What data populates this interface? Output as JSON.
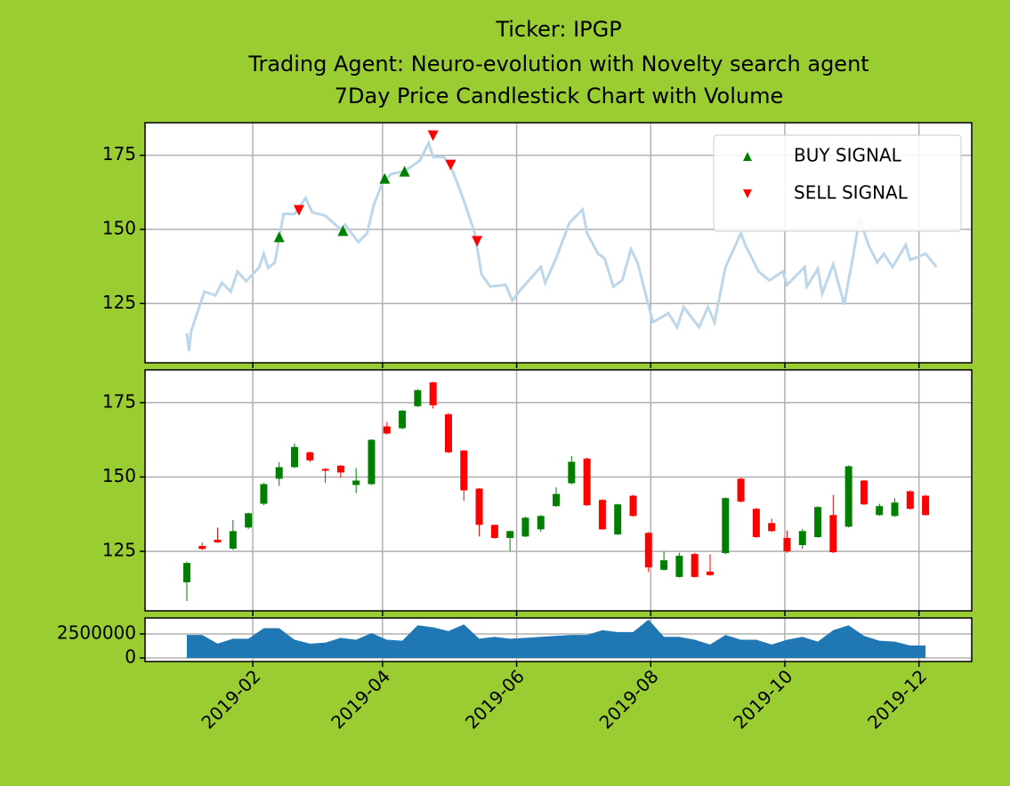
{
  "chart_data": [
    {
      "type": "line",
      "title": [
        "Ticker: IPGP",
        "Trading Agent: Neuro-evolution with Novelty search agent",
        "7Day Price Candlestick Chart with Volume"
      ],
      "ylim": [
        105,
        186
      ],
      "yticks": [
        125,
        150,
        175
      ],
      "grid": true,
      "legend": "upper right",
      "series": [
        {
          "color": "#bcd6ea",
          "marker": "none",
          "x": [
            "2019-01-02",
            "2019-01-03",
            "2019-01-04",
            "2019-01-10",
            "2019-01-15",
            "2019-01-18",
            "2019-01-22",
            "2019-01-25",
            "2019-01-29",
            "2019-02-04",
            "2019-02-06",
            "2019-02-08",
            "2019-02-11",
            "2019-02-13",
            "2019-02-15",
            "2019-02-20",
            "2019-02-25",
            "2019-02-28",
            "2019-03-06",
            "2019-03-13",
            "2019-03-15",
            "2019-03-21",
            "2019-03-25",
            "2019-03-28",
            "2019-04-01",
            "2019-04-05",
            "2019-04-11",
            "2019-04-18",
            "2019-04-22",
            "2019-04-24",
            "2019-04-29",
            "2019-05-03",
            "2019-05-08",
            "2019-05-13",
            "2019-05-16",
            "2019-05-20",
            "2019-05-27",
            "2019-05-30",
            "2019-06-03",
            "2019-06-12",
            "2019-06-14",
            "2019-06-19",
            "2019-06-25",
            "2019-07-01",
            "2019-07-03",
            "2019-07-08",
            "2019-07-11",
            "2019-07-15",
            "2019-07-19",
            "2019-07-23",
            "2019-07-26",
            "2019-08-02",
            "2019-08-09",
            "2019-08-13",
            "2019-08-16",
            "2019-08-23",
            "2019-08-27",
            "2019-08-30",
            "2019-09-04",
            "2019-09-11",
            "2019-09-13",
            "2019-09-19",
            "2019-09-24",
            "2019-09-30",
            "2019-10-02",
            "2019-10-10",
            "2019-10-11",
            "2019-10-16",
            "2019-10-18",
            "2019-10-23",
            "2019-10-28",
            "2019-11-01",
            "2019-11-04",
            "2019-11-08",
            "2019-11-12",
            "2019-11-15",
            "2019-11-19",
            "2019-11-25",
            "2019-11-27",
            "2019-12-04",
            "2019-12-09"
          ],
          "values": [
            115,
            109,
            115.7,
            129,
            127.7,
            132,
            129,
            135.8,
            132.5,
            137.3,
            141.8,
            137,
            138.8,
            146.9,
            155.2,
            155.2,
            160.6,
            155.8,
            154.6,
            150,
            151.6,
            145.7,
            148.7,
            158.2,
            165.7,
            168.7,
            169.6,
            173.2,
            179.2,
            174.4,
            174.4,
            169.6,
            159.7,
            148.7,
            134.9,
            130.7,
            131.3,
            126,
            129.8,
            137.3,
            132,
            140.3,
            152.2,
            156.7,
            148.7,
            141.8,
            140.3,
            130.7,
            132.8,
            143.3,
            138.8,
            118.7,
            121.7,
            117,
            123.8,
            117,
            123.8,
            118.7,
            137.3,
            148.7,
            144.8,
            135.8,
            132.8,
            135.8,
            131.3,
            137.3,
            130.7,
            136.7,
            128.3,
            138.2,
            124.7,
            140.9,
            153.7,
            144.8,
            138.8,
            141.8,
            137.3,
            144.8,
            139.7,
            141.8,
            137.3
          ]
        },
        {
          "name": "BUY SIGNAL",
          "color": "green",
          "marker": "^",
          "x": [
            "2019-02-13",
            "2019-03-14",
            "2019-04-02",
            "2019-04-11"
          ],
          "values": [
            147.5,
            149.6,
            167.2,
            169.6
          ]
        },
        {
          "name": "SELL SIGNAL",
          "color": "red",
          "marker": "v",
          "x": [
            "2019-02-22",
            "2019-04-24",
            "2019-05-02",
            "2019-05-14"
          ],
          "values": [
            156.4,
            181.6,
            171.7,
            146
          ]
        }
      ]
    },
    {
      "type": "candlestick",
      "ylim": [
        105,
        186
      ],
      "yticks": [
        125,
        150,
        175
      ],
      "grid": true,
      "up_color": "green",
      "down_color": "red",
      "x": [
        "2019-01-02",
        "2019-01-09",
        "2019-01-16",
        "2019-01-23",
        "2019-01-30",
        "2019-02-06",
        "2019-02-13",
        "2019-02-20",
        "2019-02-27",
        "2019-03-06",
        "2019-03-13",
        "2019-03-20",
        "2019-03-27",
        "2019-04-03",
        "2019-04-10",
        "2019-04-17",
        "2019-04-24",
        "2019-05-01",
        "2019-05-08",
        "2019-05-15",
        "2019-05-22",
        "2019-05-29",
        "2019-06-05",
        "2019-06-12",
        "2019-06-19",
        "2019-06-26",
        "2019-07-03",
        "2019-07-10",
        "2019-07-17",
        "2019-07-24",
        "2019-07-31",
        "2019-08-07",
        "2019-08-14",
        "2019-08-21",
        "2019-08-28",
        "2019-09-04",
        "2019-09-11",
        "2019-09-18",
        "2019-09-25",
        "2019-10-02",
        "2019-10-09",
        "2019-10-16",
        "2019-10-23",
        "2019-10-30",
        "2019-11-06",
        "2019-11-13",
        "2019-11-20",
        "2019-11-27",
        "2019-12-04"
      ],
      "open": [
        114.6,
        126.8,
        128.9,
        125.9,
        133,
        141,
        149.4,
        153.3,
        158.3,
        152.7,
        153.8,
        147.3,
        147.6,
        167,
        166.4,
        173.8,
        181.8,
        171.1,
        158.9,
        146.1,
        133.9,
        129.5,
        130,
        132.4,
        140.2,
        147.9,
        156.2,
        142.3,
        130.7,
        143.7,
        131.2,
        118.8,
        116.4,
        124.1,
        118.2,
        124.4,
        149.4,
        139.3,
        134.5,
        129.5,
        127.1,
        129.8,
        137.2,
        133.3,
        148.8,
        137.2,
        136.9,
        145.2,
        143.7
      ],
      "high": [
        121.5,
        128,
        133,
        135.5,
        138,
        148,
        155,
        161.3,
        158.5,
        153,
        154,
        153,
        162.7,
        168.5,
        172.5,
        179.5,
        182,
        171.5,
        159,
        146.3,
        134,
        132,
        136.7,
        137.2,
        146.5,
        157,
        156.5,
        142.5,
        141,
        144,
        131.5,
        125,
        124.5,
        124.5,
        124,
        143.2,
        149.7,
        139.6,
        136,
        132,
        132.5,
        140.2,
        144,
        153.9,
        149,
        141,
        142.8,
        145.5,
        144
      ],
      "low": [
        108.3,
        125.5,
        127.8,
        125.5,
        132.5,
        140.5,
        147,
        153,
        155,
        148,
        149.7,
        144.6,
        147.3,
        164.3,
        166,
        173.5,
        173,
        158,
        142,
        130,
        129.2,
        125,
        129.8,
        131.5,
        140,
        147.5,
        140.2,
        132.2,
        130.5,
        136.6,
        118,
        118.5,
        116.2,
        116.2,
        116.8,
        124,
        141.5,
        129.5,
        131.5,
        124.5,
        125.8,
        129.5,
        124.4,
        133,
        140.5,
        136.9,
        136.5,
        139,
        137
      ],
      "close": [
        121.1,
        125.8,
        128,
        131.8,
        137.8,
        147.6,
        153.3,
        160.1,
        155.6,
        152.1,
        151.5,
        148.8,
        162.5,
        164.6,
        172.3,
        179.2,
        174.1,
        158.3,
        145.5,
        133.9,
        129.5,
        131.8,
        136.3,
        136.9,
        144.3,
        155.1,
        140.5,
        132.4,
        140.8,
        136.9,
        119.6,
        122,
        123.5,
        116.4,
        117,
        142.9,
        141.7,
        129.8,
        131.8,
        125,
        131.8,
        139.9,
        124.7,
        153.6,
        140.8,
        140.2,
        141.4,
        139.3,
        137.2
      ]
    },
    {
      "type": "area",
      "color": "#1f77b4",
      "ylim": [
        -370000,
        4170000
      ],
      "yticks": [
        0,
        2500000
      ],
      "grid": true,
      "xlim": [
        "2018-12-14",
        "2019-12-25"
      ],
      "xticks": [
        {
          "value": "2019-02-01",
          "label": "2019-02"
        },
        {
          "value": "2019-04-01",
          "label": "2019-04"
        },
        {
          "value": "2019-06-01",
          "label": "2019-06"
        },
        {
          "value": "2019-08-01",
          "label": "2019-08"
        },
        {
          "value": "2019-10-01",
          "label": "2019-10"
        },
        {
          "value": "2019-12-01",
          "label": "2019-12"
        }
      ],
      "x": [
        "2019-01-02",
        "2019-01-09",
        "2019-01-16",
        "2019-01-23",
        "2019-01-30",
        "2019-02-06",
        "2019-02-13",
        "2019-02-20",
        "2019-02-27",
        "2019-03-06",
        "2019-03-13",
        "2019-03-20",
        "2019-03-27",
        "2019-04-03",
        "2019-04-10",
        "2019-04-17",
        "2019-04-24",
        "2019-05-01",
        "2019-05-08",
        "2019-05-15",
        "2019-05-22",
        "2019-05-29",
        "2019-06-05",
        "2019-06-12",
        "2019-06-19",
        "2019-06-26",
        "2019-07-03",
        "2019-07-10",
        "2019-07-17",
        "2019-07-24",
        "2019-07-31",
        "2019-08-07",
        "2019-08-14",
        "2019-08-21",
        "2019-08-28",
        "2019-09-04",
        "2019-09-11",
        "2019-09-18",
        "2019-09-25",
        "2019-10-02",
        "2019-10-09",
        "2019-10-16",
        "2019-10-23",
        "2019-10-30",
        "2019-11-06",
        "2019-11-13",
        "2019-11-20",
        "2019-11-27",
        "2019-12-04"
      ],
      "values": [
        2400000,
        2400000,
        1500000,
        2000000,
        2000000,
        3100000,
        3100000,
        1900000,
        1500000,
        1600000,
        2100000,
        1900000,
        2600000,
        1900000,
        1800000,
        3400000,
        3200000,
        2800000,
        3500000,
        2000000,
        2200000,
        2000000,
        2100000,
        2200000,
        2300000,
        2400000,
        2400000,
        2900000,
        2700000,
        2700000,
        4000000,
        2200000,
        2200000,
        1900000,
        1400000,
        2400000,
        1900000,
        1900000,
        1400000,
        1900000,
        2200000,
        1700000,
        2900000,
        3400000,
        2300000,
        1800000,
        1700000,
        1300000,
        1300000
      ]
    }
  ]
}
